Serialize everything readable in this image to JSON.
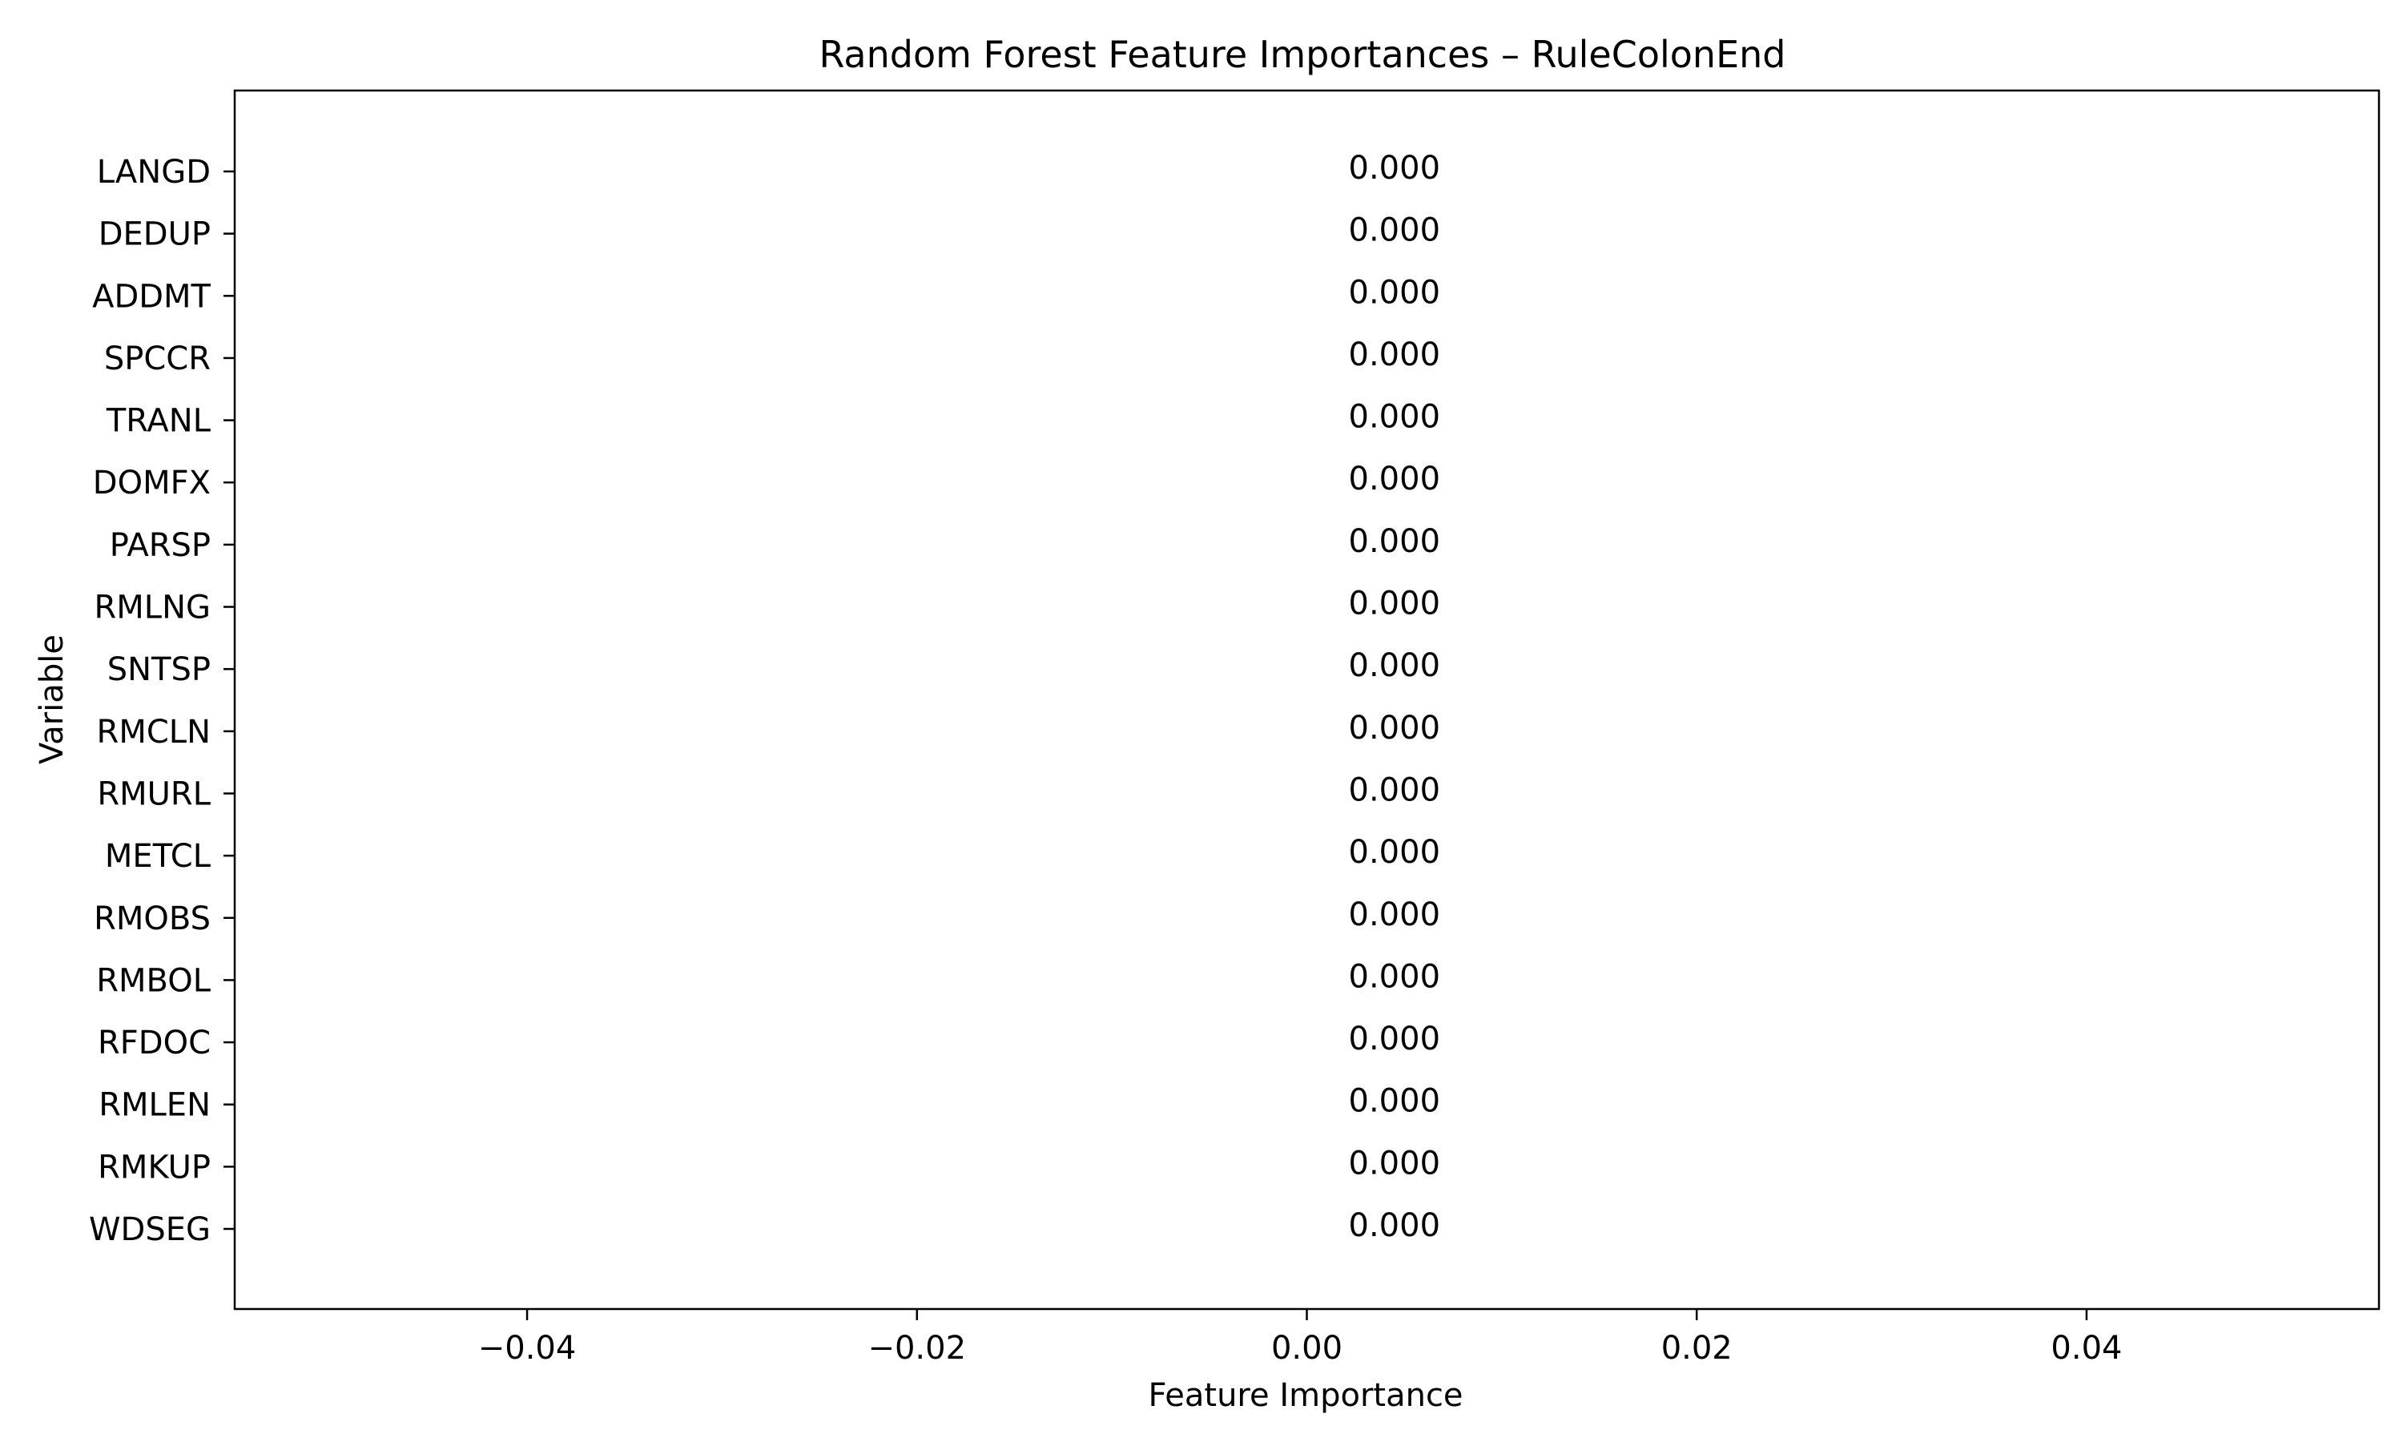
{
  "chart_data": {
    "type": "bar",
    "orientation": "horizontal",
    "title": "Random Forest Feature Importances – RuleColonEnd",
    "xlabel": "Feature Importance",
    "ylabel": "Variable",
    "categories": [
      "LANGD",
      "DEDUP",
      "ADDMT",
      "SPCCR",
      "TRANL",
      "DOMFX",
      "PARSP",
      "RMLNG",
      "SNTSP",
      "RMCLN",
      "RMURL",
      "METCL",
      "RMOBS",
      "RMBOL",
      "RFDOC",
      "RMLEN",
      "RMKUP",
      "WDSEG"
    ],
    "values": [
      0,
      0,
      0,
      0,
      0,
      0,
      0,
      0,
      0,
      0,
      0,
      0,
      0,
      0,
      0,
      0,
      0,
      0
    ],
    "value_labels": [
      "0.000",
      "0.000",
      "0.000",
      "0.000",
      "0.000",
      "0.000",
      "0.000",
      "0.000",
      "0.000",
      "0.000",
      "0.000",
      "0.000",
      "0.000",
      "0.000",
      "0.000",
      "0.000",
      "0.000",
      "0.000"
    ],
    "xlim": [
      -0.055,
      0.055
    ],
    "xticks": [
      -0.04,
      -0.02,
      0.0,
      0.02,
      0.04
    ],
    "xtick_labels": [
      "−0.04",
      "−0.02",
      "0.00",
      "0.02",
      "0.04"
    ],
    "grid": false,
    "legend": "none"
  }
}
